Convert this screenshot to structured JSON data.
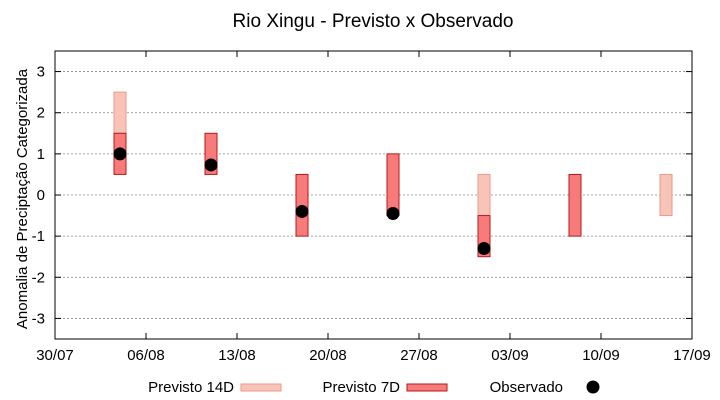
{
  "chart_data": {
    "type": "range-bar-scatter",
    "title": "Rio Xingu - Previsto x Observado",
    "xlabel": "",
    "ylabel": "Anomalia de Preciptação Categorizada",
    "x_ticks": [
      "30/07",
      "06/08",
      "13/08",
      "20/08",
      "27/08",
      "03/09",
      "10/09",
      "17/09"
    ],
    "y_ticks": [
      "-3",
      "-2",
      "-1",
      "0",
      "1",
      "2",
      "3"
    ],
    "ylim": [
      -3.5,
      3.5
    ],
    "xlim": [
      0,
      49
    ],
    "grid": true,
    "legend_position": "bottom",
    "colors": {
      "previsto_14d_fill": "#f8c4b8",
      "previsto_14d_stroke": "#e89a8c",
      "previsto_7d_fill": "#f77b7b",
      "previsto_7d_stroke": "#b81818",
      "observado": "#000000"
    },
    "series": [
      {
        "name": "Previsto 14D",
        "kind": "range",
        "points": [
          {
            "x": 5,
            "low": 1.5,
            "high": 2.5
          },
          {
            "x": 33,
            "low": -0.5,
            "high": 0.5
          },
          {
            "x": 47,
            "low": -0.5,
            "high": 0.5
          }
        ]
      },
      {
        "name": "Previsto 7D",
        "kind": "range",
        "points": [
          {
            "x": 5,
            "low": 0.5,
            "high": 1.5
          },
          {
            "x": 12,
            "low": 0.5,
            "high": 1.5
          },
          {
            "x": 19,
            "low": -1.0,
            "high": 0.5
          },
          {
            "x": 26,
            "low": -0.5,
            "high": 1.0
          },
          {
            "x": 33,
            "low": -1.5,
            "high": -0.5
          },
          {
            "x": 40,
            "low": -1.0,
            "high": 0.5
          }
        ]
      },
      {
        "name": "Observado",
        "kind": "scatter",
        "points": [
          {
            "x": 5,
            "y": 1.0
          },
          {
            "x": 12,
            "y": 0.73
          },
          {
            "x": 19,
            "y": -0.4
          },
          {
            "x": 26,
            "y": -0.45
          },
          {
            "x": 33,
            "y": -1.3
          }
        ]
      }
    ]
  }
}
